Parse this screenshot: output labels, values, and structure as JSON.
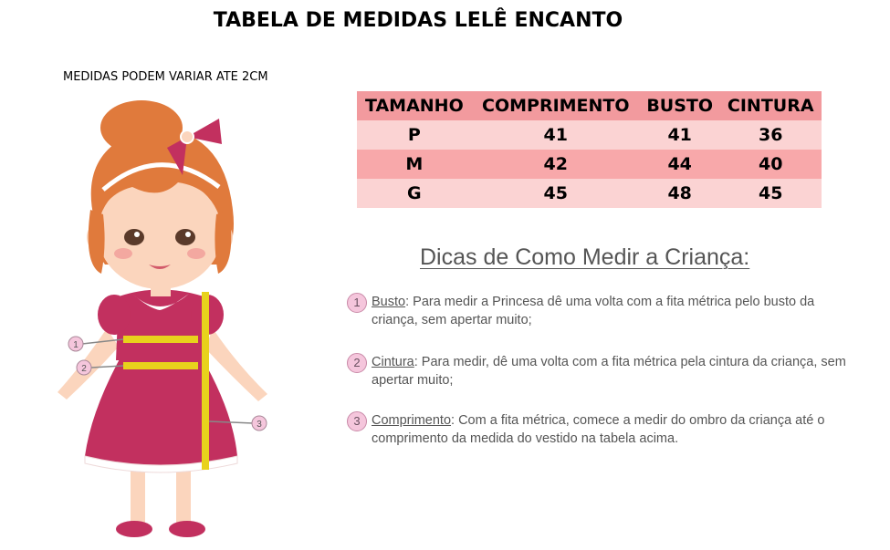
{
  "title": "TABELA DE MEDIDAS LELÊ ENCANTO",
  "note": "MEDIDAS PODEM VARIAR ATE 2CM",
  "table": {
    "headers": [
      "TAMANHO",
      "COMPRIMENTO",
      "BUSTO",
      "CINTURA"
    ],
    "rows": [
      [
        "P",
        "41",
        "41",
        "36"
      ],
      [
        "M",
        "42",
        "44",
        "40"
      ],
      [
        "G",
        "45",
        "48",
        "45"
      ]
    ]
  },
  "tips": {
    "heading": "Dicas de Como Medir a Criança:",
    "items": [
      {
        "num": "1",
        "term": "Busto",
        "text": ": Para medir a Princesa dê uma volta com a fita métrica pelo busto da criança, sem apertar muito;"
      },
      {
        "num": "2",
        "term": "Cintura",
        "text": ": Para medir, dê uma volta com a fita métrica pela cintura da criança, sem apertar muito;"
      },
      {
        "num": "3",
        "term": "Comprimento",
        "text": ": Com a fita métrica, comece a medir do ombro da criança até o comprimento da medida do vestido na tabela acima."
      }
    ]
  },
  "illustration": {
    "markers": [
      "1",
      "2",
      "3"
    ],
    "colors": {
      "hair": "#e07a3c",
      "dress": "#c2305f",
      "skin": "#fbd5bd",
      "tape": "#e8d21c",
      "marker": "#f5c6dc"
    }
  }
}
